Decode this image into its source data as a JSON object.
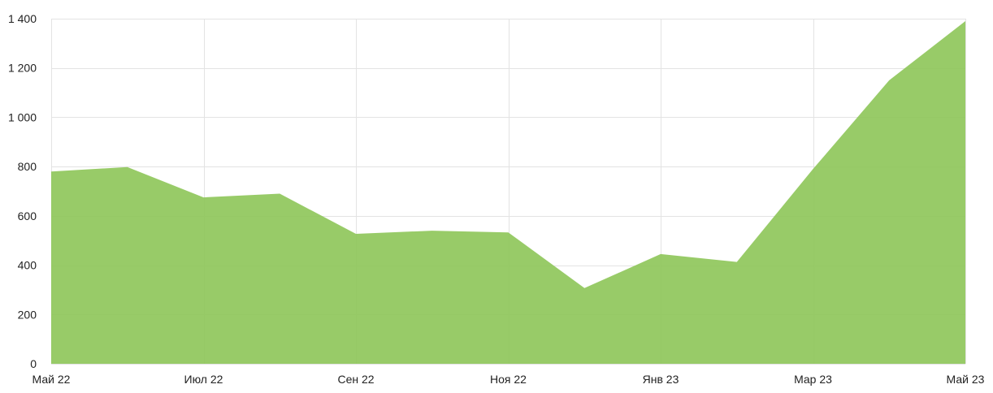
{
  "chart_data": {
    "type": "area",
    "categories": [
      "Май 22",
      "",
      "Июл 22",
      "",
      "Сен 22",
      "",
      "Ноя 22",
      "",
      "Янв 23",
      "",
      "Мар 23",
      "",
      "Май 23"
    ],
    "series": [
      {
        "values": [
          780,
          798,
          675,
          690,
          527,
          540,
          533,
          307,
          445,
          413,
          790,
          1150,
          1390
        ],
        "color": "#8dc558"
      }
    ],
    "x_tick_labels": [
      "Май 22",
      "Июл 22",
      "Сен 22",
      "Ноя 22",
      "Янв 23",
      "Мар 23",
      "Май 23"
    ],
    "y_tick_labels": [
      "0",
      "200",
      "400",
      "600",
      "800",
      "1 000",
      "1 200",
      "1 400"
    ],
    "y_ticks": [
      0,
      200,
      400,
      600,
      800,
      1000,
      1200,
      1400
    ],
    "ylim": [
      0,
      1400
    ],
    "grid": true,
    "legend": "none",
    "title": "",
    "xlabel": "",
    "ylabel": ""
  }
}
